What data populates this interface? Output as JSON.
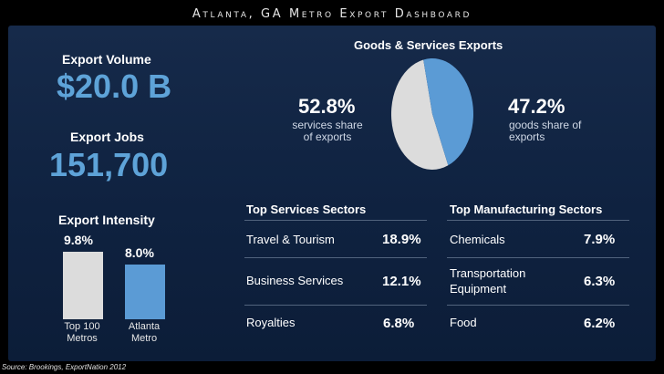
{
  "title": "Atlanta, GA Metro Export Dashboard",
  "source": "Source: Brookings, ExportNation 2012",
  "export_volume": {
    "label": "Export Volume",
    "value": "$20.0 B"
  },
  "export_jobs": {
    "label": "Export Jobs",
    "value": "151,700"
  },
  "export_intensity": {
    "label": "Export Intensity"
  },
  "goods_services": {
    "title": "Goods & Services Exports",
    "services": {
      "pct": "52.8%",
      "desc_line1": "services share",
      "desc_line2": "of exports"
    },
    "goods": {
      "pct": "47.2%",
      "desc_line1": "goods share of",
      "desc_line2": "exports"
    }
  },
  "top_services": {
    "heading": "Top Services Sectors",
    "rows": [
      {
        "name": "Travel & Tourism",
        "value": "18.9%"
      },
      {
        "name": "Business Services",
        "value": "12.1%"
      },
      {
        "name": "Royalties",
        "value": "6.8%"
      }
    ]
  },
  "top_manufacturing": {
    "heading": "Top Manufacturing Sectors",
    "rows": [
      {
        "name_line1": "Chemicals",
        "name_line2": "",
        "value": "7.9%"
      },
      {
        "name_line1": "Transportation",
        "name_line2": "Equipment",
        "value": "6.3%"
      },
      {
        "name_line1": "Food",
        "name_line2": "",
        "value": "6.2%"
      }
    ]
  },
  "chart_data": [
    {
      "type": "pie",
      "title": "Goods & Services Exports",
      "categories": [
        "services",
        "goods"
      ],
      "values": [
        52.8,
        47.2
      ],
      "colors": [
        "#dcdcdc",
        "#5b9bd5"
      ]
    },
    {
      "type": "bar",
      "title": "Export Intensity",
      "categories": [
        "Top 100 Metros",
        "Atlanta Metro"
      ],
      "tick_labels": [
        {
          "line1": "Top 100",
          "line2": "Metros"
        },
        {
          "line1": "Atlanta",
          "line2": "Metro"
        }
      ],
      "values": [
        9.8,
        8.0
      ],
      "value_labels": [
        "9.8%",
        "8.0%"
      ],
      "colors": [
        "#dcdcdc",
        "#5b9bd5"
      ],
      "ylim": [
        0,
        10
      ]
    }
  ]
}
